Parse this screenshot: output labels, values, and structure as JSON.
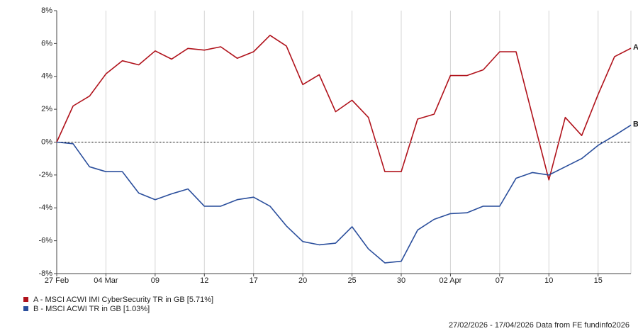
{
  "chart_data": {
    "type": "line",
    "categories": [
      "27 Feb",
      null,
      null,
      "04 Mar",
      null,
      null,
      "09",
      null,
      null,
      "12",
      null,
      null,
      "17",
      null,
      null,
      "20",
      null,
      null,
      "25",
      null,
      null,
      "30",
      null,
      null,
      "02 Apr",
      null,
      null,
      "07",
      null,
      null,
      "10",
      null,
      null,
      "15",
      null,
      null
    ],
    "series": [
      {
        "name": "A - MSCI ACWI IMI CyberSecurity TR in GB [5.71%]",
        "label": "A",
        "color": "#b0121b",
        "values": [
          0,
          2.2,
          2.8,
          4.15,
          4.95,
          4.7,
          5.55,
          5.05,
          5.7,
          5.6,
          5.8,
          5.1,
          5.5,
          6.5,
          5.85,
          3.5,
          4.1,
          1.85,
          2.55,
          1.5,
          -1.8,
          -1.8,
          1.4,
          1.7,
          4.05,
          4.05,
          4.4,
          5.5,
          5.5,
          1.6,
          -2.3,
          1.5,
          0.4,
          2.9,
          5.2,
          5.71
        ]
      },
      {
        "name": "B - MSCI ACWI TR in GB [1.03%]",
        "label": "B",
        "color": "#2a4e9c",
        "values": [
          0,
          -0.1,
          -1.5,
          -1.8,
          -1.8,
          -3.1,
          -3.5,
          -3.15,
          -2.85,
          -3.9,
          -3.9,
          -3.5,
          -3.35,
          -3.9,
          -5.1,
          -6.05,
          -6.25,
          -6.15,
          -5.15,
          -6.5,
          -7.35,
          -7.25,
          -5.35,
          -4.7,
          -4.35,
          -4.3,
          -3.9,
          -3.9,
          -2.2,
          -1.85,
          -2.0,
          -1.5,
          -1.0,
          -0.2,
          0.4,
          1.03
        ]
      }
    ],
    "ylim": [
      -8,
      8
    ],
    "yticks": [
      {
        "value": -8,
        "label": "-8%"
      },
      {
        "value": -6,
        "label": "-6%"
      },
      {
        "value": -4,
        "label": "-4%"
      },
      {
        "value": -2,
        "label": "-2%"
      },
      {
        "value": 0,
        "label": "0%"
      },
      {
        "value": 2,
        "label": "2%"
      },
      {
        "value": 4,
        "label": "4%"
      },
      {
        "value": 6,
        "label": "6%"
      },
      {
        "value": 8,
        "label": "8%"
      }
    ],
    "grid": true,
    "source": "27/02/2026 - 17/04/2026 Data from FE fundinfo2026"
  }
}
